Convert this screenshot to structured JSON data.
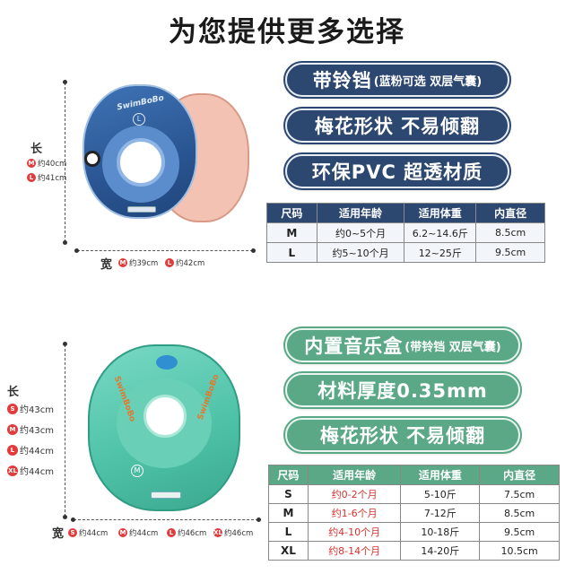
{
  "page": {
    "title": "为您提供更多选择"
  },
  "product1": {
    "length_label": "长",
    "width_label": "宽",
    "length_sizes": [
      {
        "size": "M",
        "value": "约40cm"
      },
      {
        "size": "L",
        "value": "约41cm"
      }
    ],
    "width_sizes": [
      {
        "size": "M",
        "value": "约39cm"
      },
      {
        "size": "L",
        "value": "约42cm"
      }
    ],
    "brand_text": "SwimBoBo",
    "size_mark": "L",
    "colors": {
      "blue": "#2f5f9e",
      "pink": "#f3b7a6"
    }
  },
  "features1": [
    {
      "main": "带铃铛",
      "sub": "(蓝粉可选 双层气囊)"
    },
    {
      "main": "梅花形状 不易倾翻",
      "sub": ""
    },
    {
      "main": "环保PVC 超透材质",
      "sub": ""
    }
  ],
  "table1": {
    "headers": [
      "尺码",
      "适用年龄",
      "适用体重",
      "内直径"
    ],
    "rows": [
      [
        "M",
        "约0~5个月",
        "6.2~14.6斤",
        "8.5cm"
      ],
      [
        "L",
        "约5~10个月",
        "12~25斤",
        "9.5cm"
      ]
    ]
  },
  "product2": {
    "length_label": "长",
    "width_label": "宽",
    "length_sizes": [
      {
        "size": "S",
        "value": "约43cm"
      },
      {
        "size": "M",
        "value": "约43cm"
      },
      {
        "size": "L",
        "value": "约44cm"
      },
      {
        "size": "XL",
        "value": "约44cm"
      }
    ],
    "width_sizes": [
      {
        "size": "S",
        "value": "约44cm"
      },
      {
        "size": "M",
        "value": "约44cm"
      },
      {
        "size": "L",
        "value": "约46cm"
      },
      {
        "size": "XL",
        "value": "约46cm"
      }
    ],
    "brand_text": "SwimBoBo",
    "size_mark": "M",
    "colors": {
      "green": "#4fc3a8"
    }
  },
  "features2": [
    {
      "main": "内置音乐盒",
      "sub": "(带铃铛 双层气囊)"
    },
    {
      "main": "材料厚度0.35mm",
      "sub": ""
    },
    {
      "main": "梅花形状 不易倾翻",
      "sub": ""
    }
  ],
  "table2": {
    "headers": [
      "尺码",
      "适用年龄",
      "适用体重",
      "内直径"
    ],
    "rows": [
      [
        "S",
        "约0-2个月",
        "5-10斤",
        "7.5cm"
      ],
      [
        "M",
        "约1-6个月",
        "7-12斤",
        "8.5cm"
      ],
      [
        "L",
        "约4-10个月",
        "10-18斤",
        "9.5cm"
      ],
      [
        "XL",
        "约8-14个月",
        "14-20斤",
        "10.5cm"
      ]
    ]
  }
}
